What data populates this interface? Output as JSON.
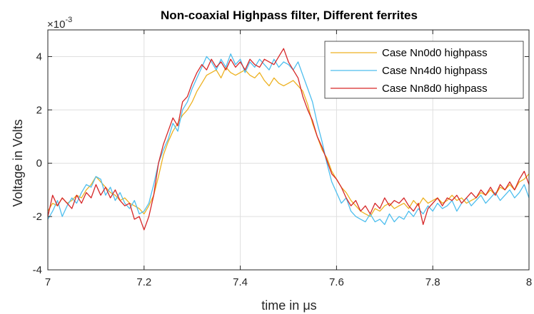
{
  "chart_data": {
    "type": "line",
    "title": "Non-coaxial Highpass filter, Different ferrites",
    "xlabel": "time in μs",
    "ylabel": "Voltage in Volts",
    "y_exponent": "×10",
    "y_exponent_power": "-3",
    "xlim": [
      7,
      8
    ],
    "ylim": [
      -4,
      5
    ],
    "xticks": [
      7,
      7.2,
      7.4,
      7.6,
      7.8,
      8
    ],
    "xtick_labels": [
      "7",
      "7.2",
      "7.4",
      "7.6",
      "7.8",
      "8"
    ],
    "yticks": [
      -4,
      -2,
      0,
      2,
      4
    ],
    "ytick_labels": [
      "-4",
      "-2",
      "0",
      "2",
      "4"
    ],
    "grid": true,
    "legend_position": "top-right",
    "x": [
      7.0,
      7.01,
      7.02,
      7.03,
      7.04,
      7.05,
      7.06,
      7.07,
      7.08,
      7.09,
      7.1,
      7.11,
      7.12,
      7.13,
      7.14,
      7.15,
      7.16,
      7.17,
      7.18,
      7.19,
      7.2,
      7.21,
      7.22,
      7.23,
      7.24,
      7.25,
      7.26,
      7.27,
      7.28,
      7.29,
      7.3,
      7.31,
      7.32,
      7.33,
      7.34,
      7.35,
      7.36,
      7.37,
      7.38,
      7.39,
      7.4,
      7.41,
      7.42,
      7.43,
      7.44,
      7.45,
      7.46,
      7.47,
      7.48,
      7.49,
      7.5,
      7.51,
      7.52,
      7.53,
      7.54,
      7.55,
      7.56,
      7.57,
      7.58,
      7.59,
      7.6,
      7.61,
      7.62,
      7.63,
      7.64,
      7.65,
      7.66,
      7.67,
      7.68,
      7.69,
      7.7,
      7.71,
      7.72,
      7.73,
      7.74,
      7.75,
      7.76,
      7.77,
      7.78,
      7.79,
      7.8,
      7.81,
      7.82,
      7.83,
      7.84,
      7.85,
      7.86,
      7.87,
      7.88,
      7.89,
      7.9,
      7.91,
      7.92,
      7.93,
      7.94,
      7.95,
      7.96,
      7.97,
      7.98,
      7.99,
      8.0
    ],
    "series": [
      {
        "name": "Case Nn0d0 highpass",
        "color": "#EDB120",
        "values": [
          -1.8,
          -1.5,
          -1.6,
          -1.3,
          -1.5,
          -1.4,
          -1.2,
          -1.3,
          -1.0,
          -0.8,
          -0.5,
          -0.7,
          -0.9,
          -1.1,
          -1.2,
          -1.4,
          -1.3,
          -1.5,
          -1.6,
          -1.7,
          -1.9,
          -1.6,
          -1.2,
          -0.5,
          0.3,
          0.8,
          1.2,
          1.5,
          1.8,
          2.0,
          2.3,
          2.7,
          3.0,
          3.3,
          3.4,
          3.5,
          3.2,
          3.6,
          3.4,
          3.3,
          3.4,
          3.5,
          3.3,
          3.2,
          3.4,
          3.1,
          2.9,
          3.2,
          3.0,
          2.9,
          3.0,
          3.1,
          2.9,
          2.7,
          2.2,
          1.5,
          1.0,
          0.5,
          0.2,
          -0.3,
          -0.6,
          -0.9,
          -1.1,
          -1.4,
          -1.6,
          -1.8,
          -1.9,
          -2.0,
          -1.7,
          -1.8,
          -1.6,
          -1.5,
          -1.7,
          -1.6,
          -1.5,
          -1.7,
          -1.4,
          -1.6,
          -1.3,
          -1.5,
          -1.4,
          -1.3,
          -1.5,
          -1.4,
          -1.2,
          -1.4,
          -1.3,
          -1.5,
          -1.4,
          -1.3,
          -1.1,
          -1.2,
          -1.0,
          -1.2,
          -0.9,
          -1.0,
          -0.8,
          -1.0,
          -0.7,
          -0.6,
          -0.4
        ]
      },
      {
        "name": "Case Nn4d0 highpass",
        "color": "#4DBEEE",
        "values": [
          -2.1,
          -1.8,
          -1.4,
          -2.0,
          -1.6,
          -1.3,
          -1.5,
          -1.1,
          -0.8,
          -0.9,
          -0.5,
          -0.6,
          -1.2,
          -0.9,
          -1.4,
          -1.1,
          -1.5,
          -1.7,
          -1.4,
          -1.9,
          -1.8,
          -1.5,
          -0.8,
          0.0,
          0.5,
          0.9,
          1.5,
          1.2,
          2.0,
          2.3,
          2.8,
          3.2,
          3.6,
          4.0,
          3.8,
          3.5,
          3.9,
          3.6,
          4.1,
          3.7,
          3.9,
          3.4,
          3.8,
          3.6,
          3.9,
          3.7,
          3.5,
          3.9,
          3.6,
          3.8,
          3.7,
          3.5,
          3.8,
          3.3,
          2.8,
          2.3,
          1.5,
          0.8,
          0.0,
          -0.7,
          -1.1,
          -1.5,
          -1.3,
          -1.8,
          -2.0,
          -2.1,
          -2.2,
          -1.9,
          -2.2,
          -2.1,
          -2.3,
          -1.9,
          -2.2,
          -2.0,
          -2.1,
          -1.8,
          -2.0,
          -1.7,
          -1.9,
          -1.6,
          -1.8,
          -1.5,
          -1.7,
          -1.6,
          -1.4,
          -1.8,
          -1.5,
          -1.3,
          -1.6,
          -1.4,
          -1.2,
          -1.5,
          -1.3,
          -1.1,
          -1.4,
          -1.2,
          -1.0,
          -1.3,
          -1.1,
          -0.8,
          -1.3
        ]
      },
      {
        "name": "Case Nn8d0 highpass",
        "color": "#D62728",
        "values": [
          -2.0,
          -1.2,
          -1.6,
          -1.3,
          -1.5,
          -1.7,
          -1.2,
          -1.5,
          -1.1,
          -1.3,
          -0.8,
          -1.2,
          -0.9,
          -1.3,
          -1.0,
          -1.4,
          -1.6,
          -1.5,
          -2.1,
          -2.0,
          -2.5,
          -2.0,
          -1.2,
          0.0,
          0.7,
          1.2,
          1.7,
          1.4,
          2.3,
          2.5,
          3.0,
          3.4,
          3.7,
          3.5,
          3.9,
          3.6,
          3.8,
          3.5,
          3.9,
          3.6,
          3.8,
          3.5,
          3.9,
          3.7,
          3.6,
          3.9,
          3.8,
          3.7,
          4.0,
          4.3,
          3.8,
          3.5,
          3.2,
          2.5,
          2.0,
          1.6,
          1.0,
          0.6,
          0.1,
          -0.4,
          -0.6,
          -0.9,
          -1.3,
          -1.6,
          -1.4,
          -1.8,
          -1.6,
          -1.9,
          -1.5,
          -1.7,
          -1.3,
          -1.6,
          -1.4,
          -1.5,
          -1.3,
          -1.6,
          -1.8,
          -1.5,
          -2.3,
          -1.7,
          -1.5,
          -1.3,
          -1.6,
          -1.3,
          -1.4,
          -1.2,
          -1.5,
          -1.3,
          -1.1,
          -1.3,
          -1.0,
          -1.2,
          -0.9,
          -1.2,
          -0.8,
          -1.0,
          -0.7,
          -1.0,
          -0.6,
          -0.3,
          -0.8
        ]
      }
    ]
  }
}
